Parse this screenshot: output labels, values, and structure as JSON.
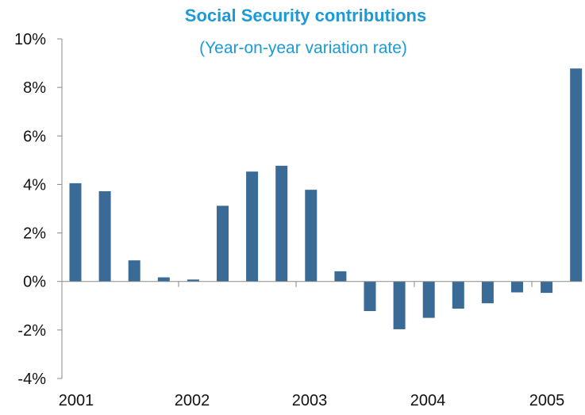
{
  "chart_data": {
    "type": "bar",
    "title": "Social Security contributions",
    "subtitle": "(Year-on-year variation rate)",
    "xlabel": "",
    "ylabel": "",
    "ylim": [
      -4,
      10
    ],
    "y_ticks": [
      -4,
      -2,
      0,
      2,
      4,
      6,
      8,
      10
    ],
    "y_tick_labels": [
      "-4%",
      "-2%",
      "0%",
      "2%",
      "4%",
      "6%",
      "8%",
      "10%"
    ],
    "year_labels": [
      "2001",
      "2002",
      "2003",
      "2004",
      "2005"
    ],
    "values": [
      4.05,
      3.72,
      0.87,
      0.17,
      0.08,
      3.12,
      4.53,
      4.77,
      3.78,
      0.42,
      -1.22,
      -1.97,
      -1.5,
      -1.12,
      -0.9,
      -0.45,
      -0.47,
      8.78
    ],
    "grid": false,
    "legend": "none",
    "colors": {
      "bar": "#3a6a96",
      "title": "#1a9ad6",
      "axis": "#8a8a8a"
    }
  }
}
